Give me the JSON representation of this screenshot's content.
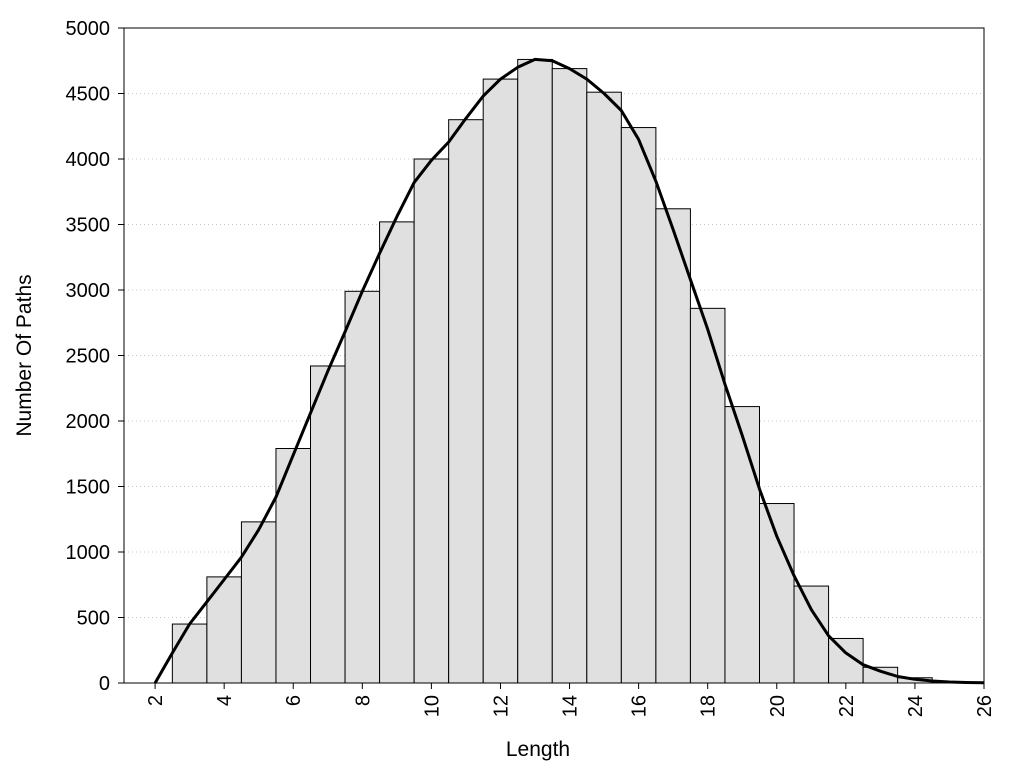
{
  "chart_data": {
    "type": "bar",
    "title": "",
    "xlabel": "Length",
    "ylabel": "Number Of Paths",
    "xlim": [
      1.1,
      26
    ],
    "ylim": [
      0,
      5000
    ],
    "grid": true,
    "grid_style": "horizontal dotted",
    "legend": "none",
    "x_ticks": [
      2,
      4,
      6,
      8,
      10,
      12,
      14,
      16,
      18,
      20,
      22,
      24,
      26
    ],
    "y_ticks": [
      0,
      500,
      1000,
      1500,
      2000,
      2500,
      3000,
      3500,
      4000,
      4500,
      5000
    ],
    "bar_width": 1,
    "series": [
      {
        "kind": "bar",
        "x": [
          3,
          4,
          5,
          6,
          7,
          8,
          9,
          10,
          11,
          12,
          13,
          14,
          15,
          16,
          17,
          18,
          19,
          20,
          21,
          22,
          23,
          24,
          25
        ],
        "values": [
          450,
          810,
          1230,
          1790,
          2420,
          2990,
          3520,
          4000,
          4300,
          4610,
          4760,
          4690,
          4510,
          4240,
          3620,
          2860,
          2110,
          1370,
          740,
          340,
          120,
          40,
          10
        ],
        "color": "#e0e0e0"
      },
      {
        "kind": "line",
        "x": [
          2,
          2.5,
          3,
          3.5,
          4,
          4.5,
          5,
          5.5,
          6,
          6.5,
          7,
          7.5,
          8,
          8.5,
          9,
          9.5,
          10,
          10.5,
          11,
          11.5,
          12,
          12.5,
          13,
          13.5,
          14,
          14.5,
          15,
          15.5,
          16,
          16.5,
          17,
          17.5,
          18,
          18.5,
          19,
          19.5,
          20,
          20.5,
          21,
          21.5,
          22,
          22.5,
          23,
          23.5,
          24,
          24.5,
          25,
          25.5,
          26
        ],
        "values": [
          0,
          230,
          450,
          620,
          790,
          960,
          1170,
          1420,
          1740,
          2060,
          2380,
          2680,
          2990,
          3280,
          3560,
          3820,
          3990,
          4130,
          4310,
          4480,
          4610,
          4700,
          4760,
          4750,
          4690,
          4610,
          4500,
          4370,
          4150,
          3830,
          3460,
          3080,
          2700,
          2280,
          1890,
          1480,
          1120,
          820,
          560,
          360,
          230,
          140,
          90,
          50,
          28,
          15,
          8,
          4,
          2
        ],
        "color": "#000000"
      }
    ]
  }
}
